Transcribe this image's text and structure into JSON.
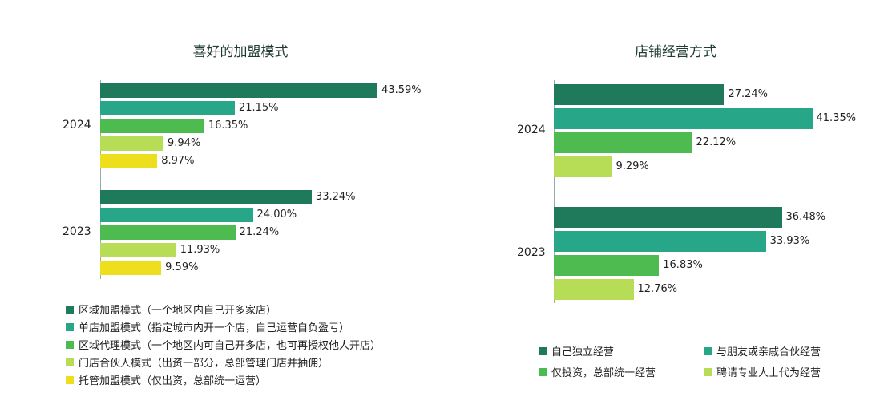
{
  "chart_data": [
    {
      "type": "bar",
      "orientation": "horizontal",
      "title": "喜好的加盟模式",
      "categories": [
        "2024",
        "2023"
      ],
      "series": [
        {
          "name": "区域加盟模式（一个地区内自己开多家店）",
          "color": "#1f7a5c",
          "values": [
            43.59,
            33.24
          ]
        },
        {
          "name": "单店加盟模式（指定城市内开一个店，自己运营自负盈亏）",
          "color": "#27a688",
          "values": [
            21.15,
            24.0
          ]
        },
        {
          "name": "区域代理模式（一个地区内可自己开多店，也可再授权他人开店）",
          "color": "#4dbb50",
          "values": [
            16.35,
            21.24
          ]
        },
        {
          "name": "门店合伙人模式（出资一部分，总部管理门店并抽佣）",
          "color": "#b7dc55",
          "values": [
            9.94,
            11.93
          ]
        },
        {
          "name": "托管加盟模式（仅出资，总部统一运营）",
          "color": "#eedf1e",
          "values": [
            8.97,
            9.59
          ]
        }
      ],
      "labels": [
        [
          "43.59%",
          "21.15%",
          "16.35%",
          "9.94%",
          "8.97%"
        ],
        [
          "33.24%",
          "24.00%",
          "21.24%",
          "11.93%",
          "9.59%"
        ]
      ],
      "legend": "bottom"
    },
    {
      "type": "bar",
      "orientation": "horizontal",
      "title": "店铺经营方式",
      "categories": [
        "2024",
        "2023"
      ],
      "series": [
        {
          "name": "自己独立经营",
          "color": "#1f7a5c",
          "values": [
            27.24,
            36.48
          ]
        },
        {
          "name": "与朋友或亲戚合伙经营",
          "color": "#27a688",
          "values": [
            41.35,
            33.93
          ]
        },
        {
          "name": "仅投资，总部统一经营",
          "color": "#4dbb50",
          "values": [
            22.12,
            16.83
          ]
        },
        {
          "name": "聘请专业人士代为经营",
          "color": "#b7dc55",
          "values": [
            9.29,
            12.76
          ]
        }
      ],
      "labels": [
        [
          "27.24%",
          "41.35%",
          "22.12%",
          "9.29%"
        ],
        [
          "36.48%",
          "33.93%",
          "16.83%",
          "12.76%"
        ]
      ],
      "legend": "bottom"
    }
  ]
}
